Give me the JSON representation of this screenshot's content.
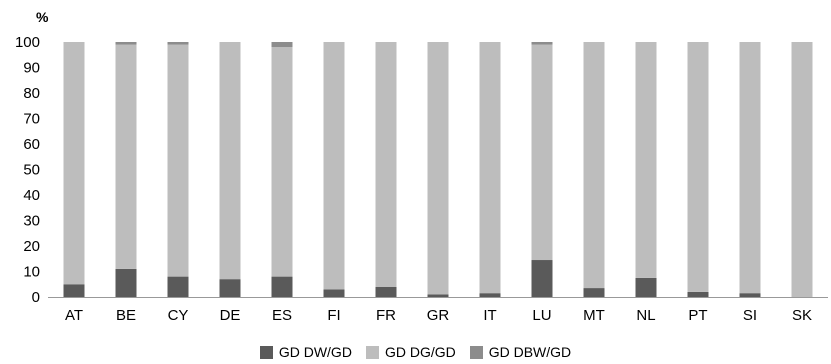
{
  "chart_data": {
    "type": "bar",
    "stacked": true,
    "ylabel": "%",
    "ylim": [
      0,
      100
    ],
    "yticks": [
      0,
      10,
      20,
      30,
      40,
      50,
      60,
      70,
      80,
      90,
      100
    ],
    "categories": [
      "AT",
      "BE",
      "CY",
      "DE",
      "ES",
      "FI",
      "FR",
      "GR",
      "IT",
      "LU",
      "MT",
      "NL",
      "PT",
      "SI",
      "SK"
    ],
    "series": [
      {
        "name": "GD  DW/GD",
        "color": "#5a5a5a",
        "values": [
          5,
          11,
          8,
          7,
          8,
          3,
          4,
          1,
          1.5,
          14.5,
          3.5,
          7.5,
          2,
          1.5,
          0
        ]
      },
      {
        "name": "GD  DG/GD",
        "color": "#bdbdbd",
        "values": [
          95,
          88,
          91,
          93,
          90,
          97,
          96,
          99,
          98.5,
          84.5,
          96.5,
          92.5,
          98,
          98.5,
          100
        ]
      },
      {
        "name": "GD  DBW/GD",
        "color": "#8c8c8c",
        "values": [
          0,
          1,
          1,
          0,
          2,
          0,
          0,
          0,
          0,
          1,
          0,
          0,
          0,
          0,
          0
        ]
      }
    ],
    "legend_position": "bottom",
    "grid": false
  }
}
